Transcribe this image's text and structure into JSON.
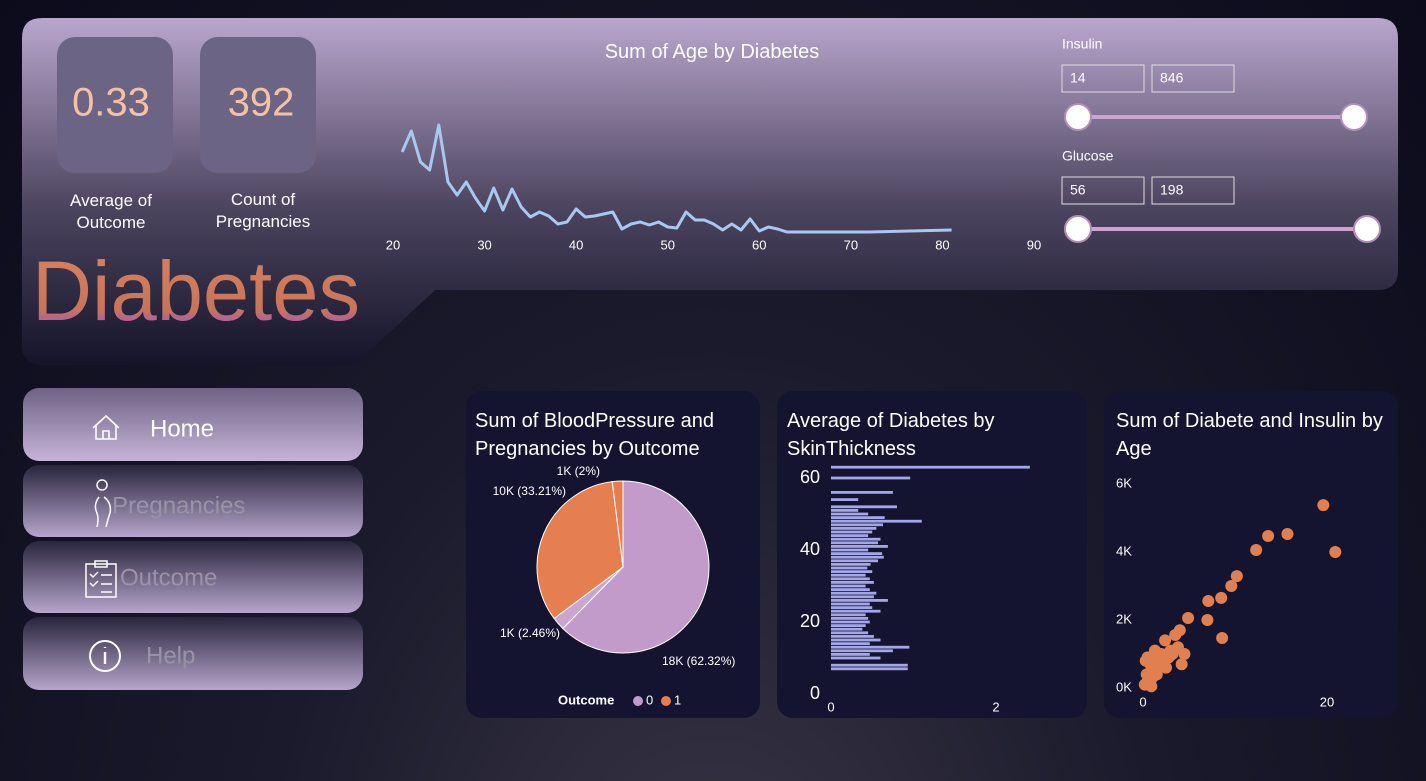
{
  "kpis": [
    {
      "value": 0.33,
      "label": "Average of Outcome"
    },
    {
      "value": 392,
      "label": "Count of Pregnancies"
    }
  ],
  "logo": "Diabetes",
  "nav": [
    "Home",
    "Pregnancies",
    "Outcome",
    "Help"
  ],
  "slicers": [
    {
      "label": "Insulin",
      "min": 14,
      "max": 846
    },
    {
      "label": "Glucose",
      "min": 56,
      "max": 198
    }
  ],
  "chart_data": [
    {
      "type": "line",
      "title": "Sum of Age by Diabetes",
      "color": "#a9c8f0",
      "x": [
        21,
        22,
        23,
        24,
        25,
        26,
        27,
        28,
        29,
        30,
        31,
        32,
        33,
        34,
        35,
        36,
        37,
        38,
        39,
        40,
        41,
        42,
        43,
        44,
        45,
        46,
        47,
        48,
        49,
        50,
        51,
        52,
        53,
        54,
        55,
        56,
        57,
        58,
        59,
        60,
        61,
        62,
        63,
        64,
        65,
        66,
        67,
        68,
        69,
        70,
        72,
        81
      ],
      "values": [
        88,
        109,
        78,
        70,
        115,
        58,
        45,
        58,
        42,
        29,
        52,
        30,
        51,
        33,
        23,
        28,
        24,
        16,
        18,
        31,
        23,
        24,
        26,
        28,
        11,
        16,
        18,
        15,
        18,
        13,
        12,
        28,
        20,
        20,
        16,
        10,
        16,
        10,
        21,
        9,
        13,
        11,
        8,
        8,
        8,
        8,
        8,
        8,
        8,
        8,
        8,
        10
      ],
      "xlim": [
        20,
        90
      ],
      "xticks": [
        20,
        30,
        40,
        50,
        60,
        70,
        80,
        90
      ],
      "ylim": [
        0,
        120
      ]
    },
    {
      "type": "pie",
      "title": "Sum of BloodPressure and Pregnancies by Outcome",
      "values": [
        62.32,
        2.46,
        33.21,
        2
      ],
      "value_labels": [
        "18K (62.32%)",
        "1K (2.46%)",
        "10K (33.21%)",
        "1K (2%)"
      ],
      "colors": [
        "#c39bcb",
        "#c9a6d2",
        "#e57f4f",
        "#e57f4f"
      ],
      "legend_title": "Outcome",
      "legend": [
        {
          "name": "0",
          "color": "#c39bcb"
        },
        {
          "name": "1",
          "color": "#e57f4f"
        }
      ]
    },
    {
      "type": "bar",
      "orientation": "horizontal",
      "title": "Average of Diabetes by SkinThickness",
      "color": "#a3a6e8",
      "y": [
        7,
        8,
        10,
        11,
        12,
        13,
        14,
        15,
        16,
        17,
        18,
        19,
        20,
        21,
        22,
        23,
        24,
        25,
        26,
        27,
        28,
        29,
        30,
        31,
        32,
        33,
        34,
        35,
        36,
        37,
        38,
        39,
        40,
        41,
        42,
        43,
        44,
        45,
        46,
        47,
        48,
        49,
        50,
        51,
        52,
        54,
        56,
        60,
        63
      ],
      "values": [
        0.93,
        0.93,
        0.6,
        0.47,
        0.75,
        0.95,
        0.47,
        0.6,
        0.52,
        0.45,
        0.38,
        0.42,
        0.47,
        0.45,
        0.42,
        0.6,
        0.5,
        0.47,
        0.69,
        0.52,
        0.55,
        0.47,
        0.42,
        0.52,
        0.47,
        0.42,
        0.5,
        0.44,
        0.48,
        0.57,
        0.64,
        0.62,
        0.45,
        0.69,
        0.57,
        0.6,
        0.45,
        0.5,
        0.55,
        0.63,
        1.1,
        0.65,
        0.45,
        0.33,
        0.8,
        0.33,
        0.75,
        0.96,
        2.41
      ],
      "xlim": [
        0,
        3
      ],
      "xticks": [
        0,
        2
      ],
      "ylim": [
        0,
        65
      ],
      "yticks": [
        0,
        20,
        40,
        60
      ]
    },
    {
      "type": "scatter",
      "title": "Sum of Diabete and Insulin by Age",
      "color": "#e07f50",
      "x": [
        0.3,
        0.5,
        0.8,
        1.0,
        0.4,
        0.6,
        1.2,
        1.5,
        1.8,
        2.0,
        2.2,
        2.5,
        2.8,
        3.0,
        3.2,
        0.2,
        0.5,
        1.0,
        1.5,
        4.5,
        4.2,
        3.8,
        2.4,
        1.3,
        3.5,
        4.0,
        4.9,
        7.0,
        7.1,
        8.5,
        8.6,
        9.6,
        10.2,
        12.3,
        13.6,
        15.7,
        19.6,
        20.9,
        0.9,
        2.9
      ],
      "values": [
        800,
        900,
        700,
        600,
        400,
        300,
        500,
        900,
        700,
        1000,
        800,
        600,
        900,
        1100,
        1000,
        100,
        200,
        300,
        400,
        1000,
        700,
        1200,
        1400,
        1100,
        1560,
        1700,
        2060,
        2000,
        2560,
        2650,
        1470,
        3000,
        3290,
        4060,
        4470,
        4530,
        5380,
        4000,
        50,
        1050
      ],
      "xlim": [
        0,
        25
      ],
      "xticks": [
        0,
        20
      ],
      "ylim": [
        0,
        6000
      ],
      "yticks": [
        {
          "value": 0,
          "label": "0K"
        },
        {
          "value": 2000,
          "label": "2K"
        },
        {
          "value": 4000,
          "label": "4K"
        },
        {
          "value": 6000,
          "label": "6K"
        }
      ]
    }
  ]
}
